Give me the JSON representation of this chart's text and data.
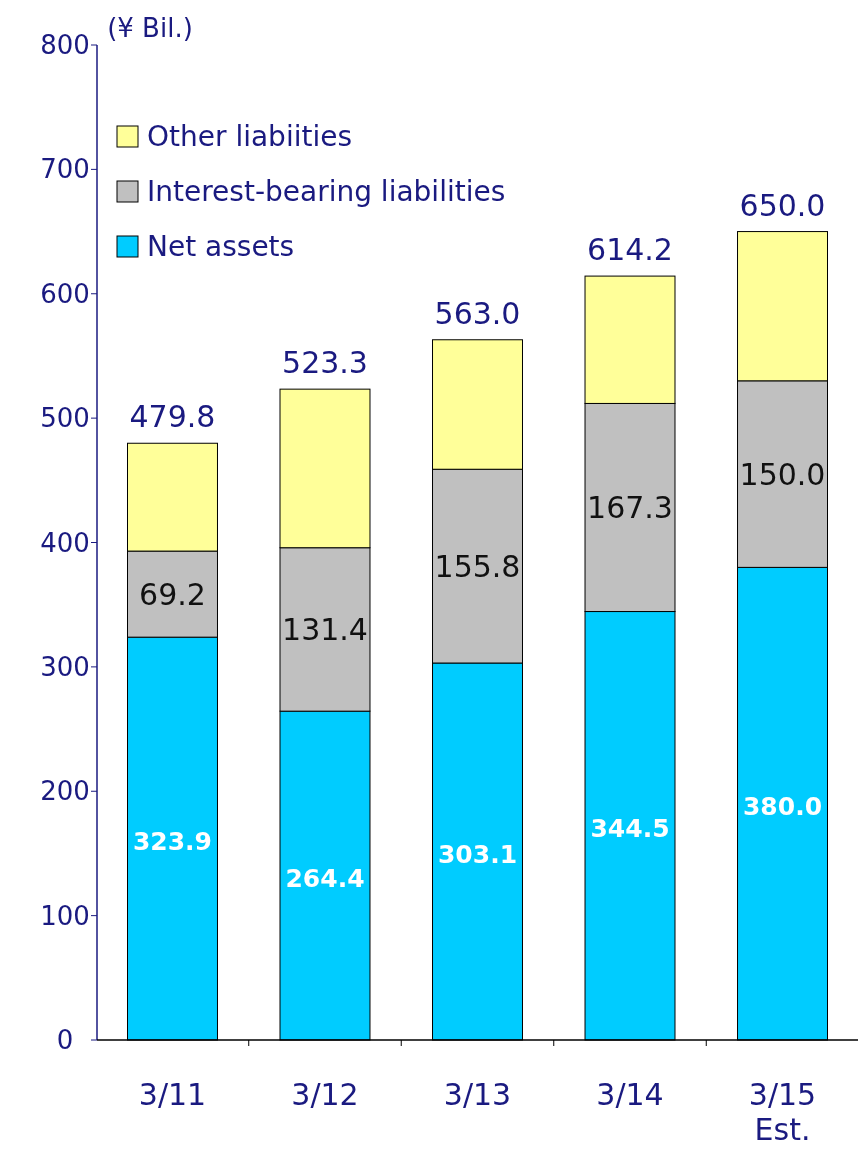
{
  "chart_data": {
    "type": "bar",
    "stacked": true,
    "ylabel": "(¥ Bil.)",
    "categories": [
      "3/11",
      "3/12",
      "3/13",
      "3/14",
      "3/15\nEst."
    ],
    "ylim": [
      0,
      800
    ],
    "yticks": [
      0,
      100,
      200,
      300,
      400,
      500,
      600,
      700,
      800
    ],
    "legend": "top left",
    "grid": false,
    "series": [
      {
        "name": "Net assets",
        "color": "#00ccff",
        "values": [
          323.9,
          264.4,
          303.1,
          344.5,
          380.0
        ],
        "value_labels": [
          "323.9",
          "264.4",
          "303.1",
          "344.5",
          "380.0"
        ]
      },
      {
        "name": "Interest-bearing liabilities",
        "color": "#c0c0c0",
        "values": [
          69.2,
          131.4,
          155.8,
          167.3,
          150.0
        ],
        "value_labels": [
          "69.2",
          "131.4",
          "155.8",
          "167.3",
          "150.0"
        ]
      },
      {
        "name": "Other liabiities",
        "color": "#ffff99",
        "values": [
          86.7,
          127.5,
          104.1,
          102.4,
          120.0
        ]
      }
    ],
    "totals": [
      "479.8",
      "523.3",
      "563.0",
      "614.2",
      "650.0"
    ]
  }
}
